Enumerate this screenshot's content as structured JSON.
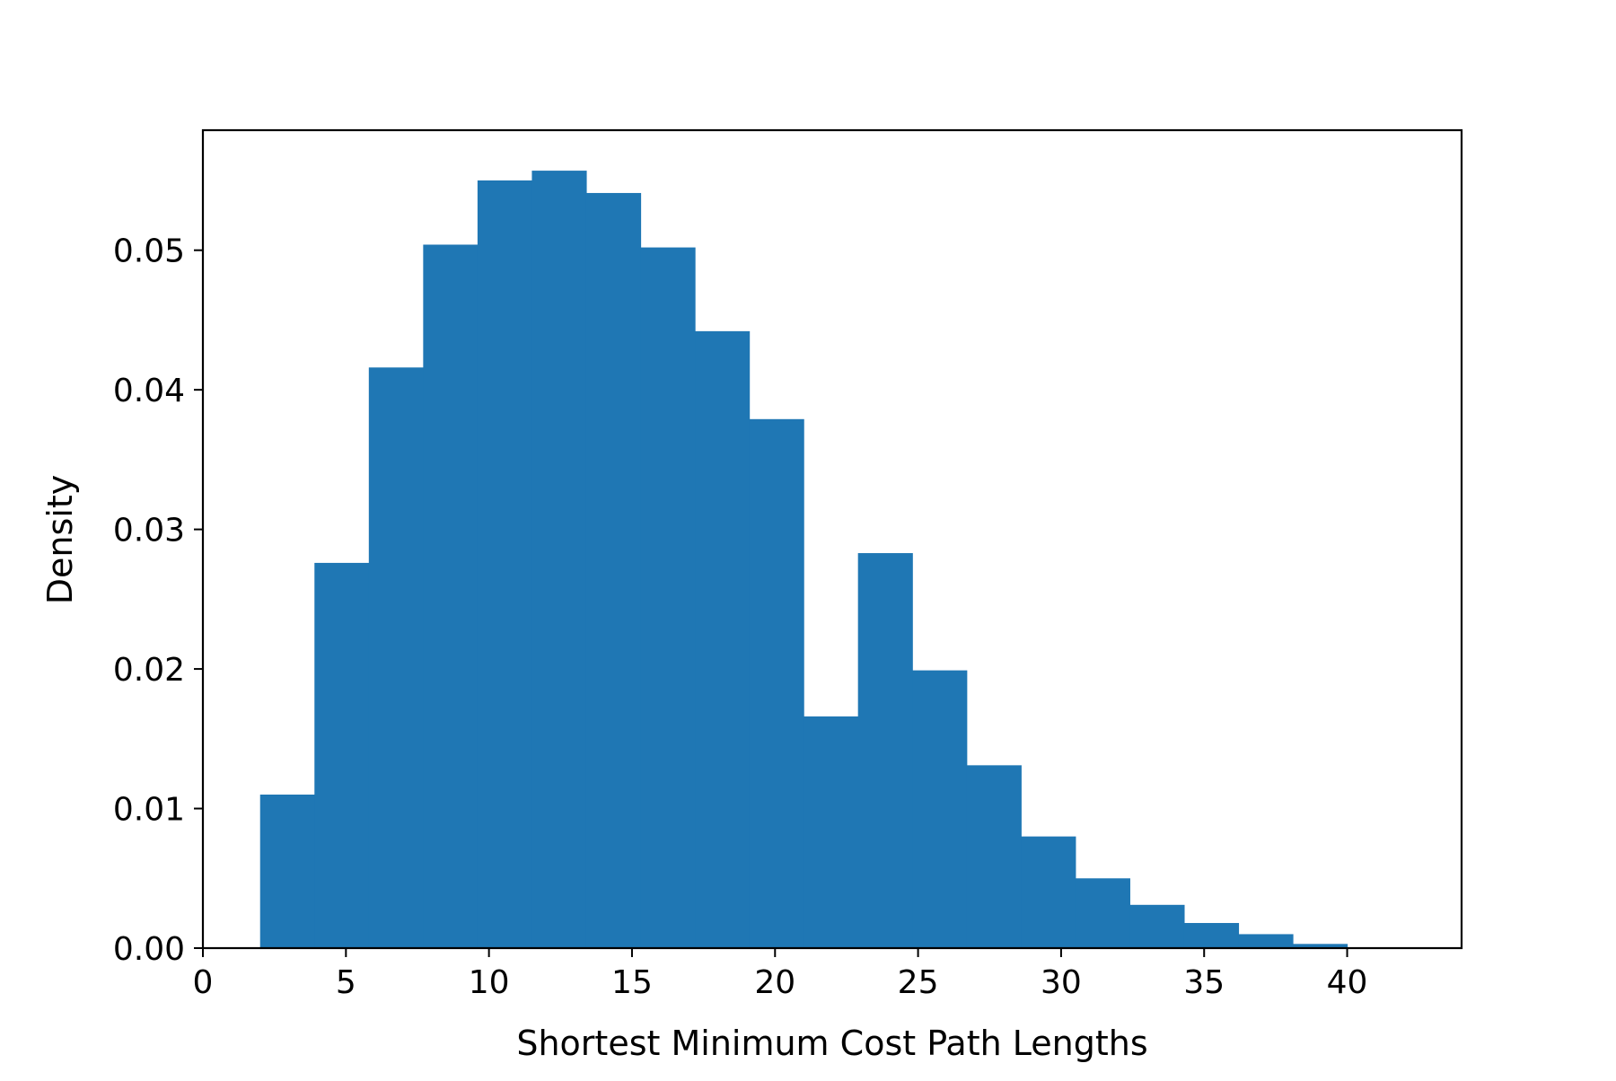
{
  "chart_data": {
    "type": "bar",
    "title": "",
    "xlabel": "Shortest Minimum Cost Path Lengths",
    "ylabel": "Density",
    "xlim": [
      0,
      44
    ],
    "ylim": [
      0,
      0.0586
    ],
    "xticks": [
      0,
      5,
      10,
      15,
      20,
      25,
      30,
      35,
      40
    ],
    "xtick_labels": [
      "0",
      "5",
      "10",
      "15",
      "20",
      "25",
      "30",
      "35",
      "40"
    ],
    "yticks": [
      0.0,
      0.01,
      0.02,
      0.03,
      0.04,
      0.05
    ],
    "ytick_labels": [
      "0.00",
      "0.01",
      "0.02",
      "0.03",
      "0.04",
      "0.05"
    ],
    "grid": false,
    "legend": "none",
    "bar_color": "#1f77b4",
    "bin_edges": [
      2,
      3.9,
      5.8,
      7.7,
      9.6,
      11.5,
      13.4,
      15.3,
      17.2,
      19.1,
      21.0,
      22.9,
      24.8,
      26.7,
      28.6,
      30.5,
      32.4,
      34.3,
      36.2,
      38.1,
      40.0
    ],
    "values": [
      0.011,
      0.0276,
      0.0416,
      0.0504,
      0.055,
      0.0557,
      0.0541,
      0.0502,
      0.0442,
      0.0379,
      0.0166,
      0.0283,
      0.0199,
      0.0131,
      0.008,
      0.005,
      0.0031,
      0.0018,
      0.001,
      0.0003
    ]
  }
}
